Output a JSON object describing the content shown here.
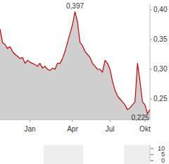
{
  "chart_data": [
    {
      "type": "line",
      "categories": [
        null,
        null,
        null,
        null,
        null,
        null,
        null,
        null,
        null,
        null,
        null,
        null,
        "Jan",
        null,
        null,
        null,
        null,
        null,
        null,
        null,
        null,
        null,
        null,
        null,
        null,
        null,
        null,
        null,
        null,
        "Apr",
        null,
        null,
        null,
        null,
        null,
        null,
        null,
        null,
        null,
        null,
        null,
        null,
        null,
        null,
        "Jul",
        null,
        null,
        null,
        null,
        null,
        null,
        null,
        null,
        null,
        null,
        null,
        null,
        null,
        "Okt",
        null,
        null
      ],
      "values": [
        0.368,
        0.345,
        0.342,
        0.335,
        0.338,
        0.33,
        0.325,
        0.322,
        0.318,
        0.32,
        0.31,
        0.315,
        0.312,
        0.31,
        0.308,
        0.305,
        0.31,
        0.302,
        0.305,
        0.3,
        0.298,
        0.302,
        0.3,
        0.31,
        0.31,
        0.318,
        0.33,
        0.345,
        0.36,
        0.375,
        0.397,
        0.38,
        0.345,
        0.34,
        0.33,
        0.325,
        0.32,
        0.31,
        0.305,
        0.3,
        0.3,
        0.295,
        0.315,
        0.31,
        0.3,
        0.28,
        0.265,
        0.255,
        0.25,
        0.245,
        0.24,
        0.232,
        0.235,
        0.24,
        0.245,
        0.31,
        0.28,
        0.245,
        0.24,
        0.225,
        0.232
      ],
      "color": "#cc0000",
      "ylim": [
        0.215,
        0.41
      ],
      "yticks": [
        {
          "value": 0.25,
          "label": "0,25"
        },
        {
          "value": 0.3,
          "label": "0,30"
        },
        {
          "value": 0.35,
          "label": "0,35"
        },
        {
          "value": 0.4,
          "label": "0,40"
        }
      ],
      "grid": false,
      "annotations": [
        {
          "text": "0,397",
          "value": 0.397
        },
        {
          "text": "0,225",
          "value": 0.225
        }
      ]
    },
    {
      "type": "bar",
      "categories": [],
      "values": [],
      "ylim": [
        -1,
        13
      ],
      "yticks": [
        0,
        5,
        10
      ]
    }
  ]
}
